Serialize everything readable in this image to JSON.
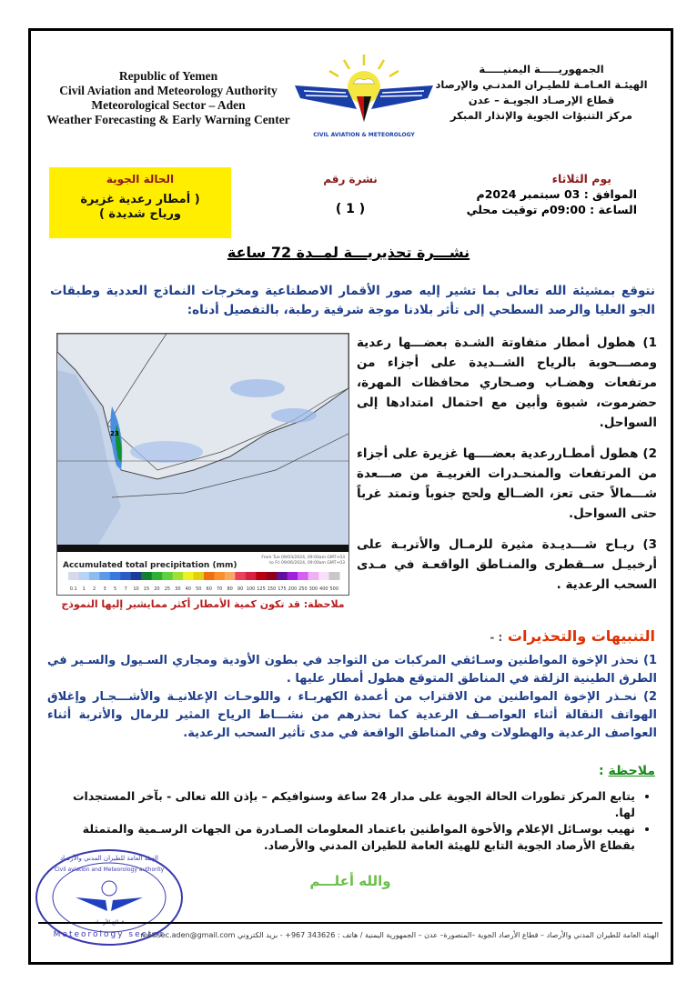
{
  "header": {
    "english": [
      "Republic of Yemen",
      "Civil Aviation and Meteorology Authority",
      "Meteorological Sector – Aden",
      "Weather Forecasting & Early Warning Center"
    ],
    "arabic": [
      "الجمهوريـــــة اليمنيـــــة",
      "الهيئـة العـامـة للطيـران المدنـي والإرصاد",
      "قطاع الإرصـاد الجويـة – عدن",
      "مركز التنبؤات الجوية والإنذار المبكر"
    ],
    "logo_text": "CIVIL AVIATION & METEOROLOGY"
  },
  "bulletin": {
    "state_label": "الحالة الجوية",
    "state_value_line1": "( أمطار رعدية غزيرة",
    "state_value_line2": "ورياح شديدة )",
    "number_label": "نشرة رقم",
    "number_value": "( 1 )",
    "day": "يوم الثلاثاء",
    "date": "الموافق :  03 سبتمبر 2024م",
    "time": "الساعة : 09:00م توقيت محلي",
    "title": "نشـــرة تحذيريـــة لمــدة 72 ساعة"
  },
  "intro": "نتوقع بمشيئة الله تعالى بما تشير إليه صور الأقمار الاصطناعية ومخرجات النماذج العددية وطبقات الجو العليا والرصد السطحي إلى تأثر بلادنا موجة شرقية رطبة، بالتفصيل أدناه:",
  "map": {
    "legend_title": "Accumulated total precipitation (mm)",
    "period": [
      "From Tue 09/03/2024, 09:00am GMT+03",
      "to Fri 09/06/2024, 09:00am GMT+03"
    ],
    "ticks": [
      "0.1",
      "1",
      "2",
      "3",
      "5",
      "7",
      "10",
      "15",
      "20",
      "25",
      "30",
      "40",
      "50",
      "60",
      "70",
      "80",
      "90",
      "100",
      "125",
      "150",
      "175",
      "200",
      "250",
      "300",
      "400",
      "500"
    ],
    "colors": [
      "#d8d8ec",
      "#b8d4f4",
      "#8cbcf0",
      "#5a9ae8",
      "#3a78dc",
      "#2a5cc8",
      "#1c3c98",
      "#108030",
      "#30b030",
      "#60d040",
      "#a0e030",
      "#f0f020",
      "#e0d010",
      "#f07010",
      "#f89030",
      "#f8a860",
      "#e84060",
      "#d82040",
      "#b80010",
      "#900018",
      "#6010a0",
      "#a020e0",
      "#d860f0",
      "#f0b0f8",
      "#f8e0f8",
      "#c8c8c8"
    ],
    "note": "ملاحظة: قد تكون كمية الأمطار أكثر ممايشير إليها النموذج"
  },
  "forecast_items": [
    "1) هطول أمطار متفاوتة الشـدة بعضـــها رعدية ومصـــحوبة بالرياح الشــديدة على أجزاء من مرتفعات وهضـاب وصـحاري محافظات المهرة، حضرموت، شبوة وأبين مع احتمال امتدادها إلى السواحل.",
    "2) هطول أمطـاررعدية بعضــــها غزيرة على أجزاء من المرتفعات والمنحـدرات الغربيـة من صـــعدة شـــمالاً حتى تعز، الضــالع ولحج جنوباً وتمتد غرباً حتى السواحل.",
    "3) ريـاح شـــديـدة مثيرة للرمـال والأتربـة على أرخبيـل ســقطرى والمنـاطق الواقعـة في مـدى السحب الرعدية ."
  ],
  "warnings": {
    "heading": "التنبيهات والتحذيرات",
    "heading_suffix": ": -",
    "items": [
      "1) نحذر الإخوة المواطنين وسـائقي المركبات من التواجد في بطون الأودية ومجاري السـيول والسـير في الطرق الطينية الزلقة في المناطق المتوقع هطول أمطار عليها .",
      "2) نحـذر الإخوة المواطنين من الاقتراب من أعمدة الكهربـاء ، واللوحـات الإعلانيـة والأشـــجـار وإغلاق الهواتف النقالة أثناء العواصــف الرعدية كما نحذرهم من نشـــاط الرياح المثير للرمال والأتربة أثناء العواصف الرعدية والهطولات وفي المناطق الواقعة في مدى تأثير السحب الرعدية."
    ]
  },
  "notes": {
    "heading": "ملاحظة",
    "items": [
      "يتابع المركز تطورات الحالة الجوية على مدار 24 ساعة وسنوافيكم – بإذن الله تعالى - بآخر المستجدات لها.",
      "نهيب بوسـائل الإعلام والأخوة المواطنين باعتماد المعلومات الصـادرة من الجهات الرسـمية والمتمثلة بقطاع الأرصاد الجوية التابع للهيئة العامة للطيران المدني والأرصاد."
    ]
  },
  "stamp_text": [
    "الهيئة العامة للطيران المدني والأرصاد",
    "Civil aviation and Meteorology authority",
    "Meteorology sector",
    "قطاع الأرصاد"
  ],
  "closing": "والله أعلـــم",
  "footer": "الهيئة العامة للطيران المدني والأرصاد – قطاع الأرصاد الجوية –المنصورة– عدن – الجمهورية اليمنية / هاتف : 343626 967+ - بريد الكتروني met.sec.aden@gmail.com"
}
